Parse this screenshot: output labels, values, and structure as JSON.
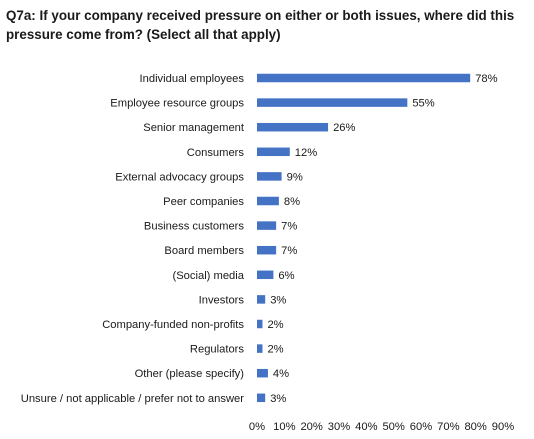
{
  "chart_data": {
    "type": "bar",
    "orientation": "horizontal",
    "title": "Q7a: If your company received pressure on either or both issues, where did this pressure come from? (Select all that apply)",
    "categories": [
      "Individual employees",
      "Employee resource groups",
      "Senior management",
      "Consumers",
      "External advocacy groups",
      "Peer companies",
      "Business customers",
      "Board members",
      "(Social) media",
      "Investors",
      "Company-funded non-profits",
      "Regulators",
      "Other (please specify)",
      "Unsure / not applicable / prefer not to answer"
    ],
    "values": [
      78,
      55,
      26,
      12,
      9,
      8,
      7,
      7,
      6,
      3,
      2,
      2,
      4,
      3
    ],
    "value_labels": [
      "78%",
      "55%",
      "26%",
      "12%",
      "9%",
      "8%",
      "7%",
      "7%",
      "6%",
      "3%",
      "2%",
      "2%",
      "4%",
      "3%"
    ],
    "xlim": [
      0,
      90
    ],
    "x_ticks": [
      "0%",
      "10%",
      "20%",
      "30%",
      "40%",
      "50%",
      "60%",
      "70%",
      "80%",
      "90%"
    ],
    "bar_color": "#4472C4",
    "grid": false,
    "legend": "none"
  }
}
